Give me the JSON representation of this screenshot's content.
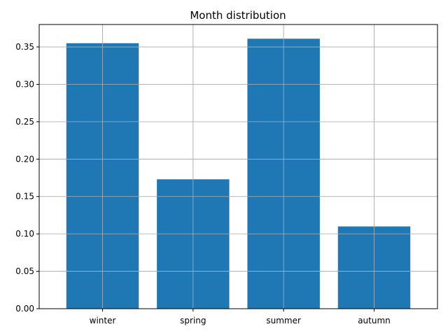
{
  "chart_data": {
    "type": "bar",
    "title": "Month distribution",
    "xlabel": "",
    "ylabel": "",
    "categories": [
      "winter",
      "spring",
      "summer",
      "autumn"
    ],
    "values": [
      0.355,
      0.173,
      0.361,
      0.11
    ],
    "ylim": [
      0,
      0.38
    ],
    "yticks": [
      0.0,
      0.05,
      0.1,
      0.15,
      0.2,
      0.25,
      0.3,
      0.35
    ],
    "ytick_labels": [
      "0.00",
      "0.05",
      "0.10",
      "0.15",
      "0.20",
      "0.25",
      "0.30",
      "0.35"
    ],
    "grid": true,
    "colors": {
      "bar": "#1f77b4",
      "grid": "#b0b0b0",
      "axis": "#000000",
      "background": "#ffffff"
    }
  }
}
